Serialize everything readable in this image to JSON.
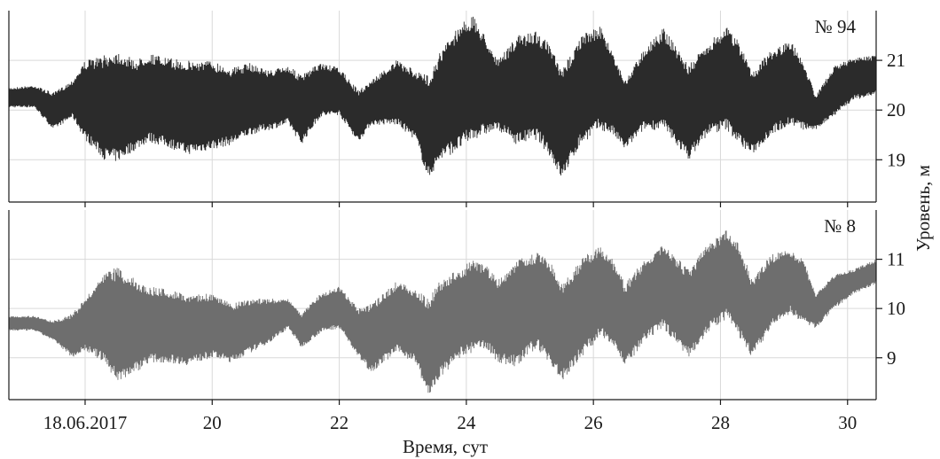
{
  "chart_data": {
    "type": "line",
    "xlabel": "Время, сут",
    "ylabel": "Уровень, м",
    "xlim": [
      16.8,
      30.45
    ],
    "x_ticks": [
      18,
      20,
      22,
      24,
      26,
      28,
      30
    ],
    "x_tick_labels": [
      "18.06.2017",
      "20",
      "22",
      "24",
      "26",
      "28",
      "30"
    ],
    "grid": true,
    "panels": [
      {
        "name": "№ 94",
        "color": "#2b2b2b",
        "ylim": [
          18.15,
          22.0
        ],
        "y_ticks": [
          19,
          20,
          21
        ],
        "envelope": {
          "x": [
            16.8,
            17.2,
            17.5,
            17.8,
            18.0,
            18.3,
            18.5,
            18.8,
            19.0,
            19.3,
            19.6,
            20.0,
            20.3,
            20.6,
            20.9,
            21.2,
            21.4,
            21.7,
            22.0,
            22.3,
            22.5,
            22.9,
            23.2,
            23.4,
            23.6,
            23.9,
            24.1,
            24.3,
            24.5,
            24.8,
            25.1,
            25.3,
            25.5,
            25.8,
            26.1,
            26.3,
            26.5,
            26.8,
            27.1,
            27.3,
            27.5,
            27.8,
            28.1,
            28.3,
            28.5,
            28.8,
            29.1,
            29.3,
            29.5,
            29.8,
            30.1,
            30.45
          ],
          "upper": [
            20.45,
            20.5,
            20.35,
            20.6,
            21.0,
            21.1,
            21.2,
            21.0,
            21.15,
            21.05,
            21.0,
            21.0,
            20.85,
            20.95,
            20.8,
            20.9,
            20.7,
            20.95,
            20.85,
            20.4,
            20.6,
            21.0,
            20.8,
            20.7,
            21.2,
            21.75,
            21.9,
            21.5,
            21.0,
            21.5,
            21.6,
            21.35,
            20.8,
            21.5,
            21.7,
            21.2,
            20.6,
            21.25,
            21.65,
            21.3,
            20.9,
            21.35,
            21.7,
            21.35,
            20.8,
            21.2,
            21.4,
            21.0,
            20.3,
            20.9,
            21.05,
            21.1
          ],
          "lower": [
            20.05,
            20.05,
            19.6,
            19.85,
            19.4,
            19.0,
            18.95,
            19.2,
            19.35,
            19.25,
            19.1,
            19.2,
            19.3,
            19.5,
            19.6,
            19.7,
            19.3,
            19.85,
            19.9,
            19.35,
            19.7,
            19.7,
            19.4,
            18.6,
            19.0,
            19.2,
            19.4,
            19.5,
            19.6,
            19.3,
            19.4,
            19.1,
            18.6,
            19.3,
            19.6,
            19.5,
            19.2,
            19.6,
            19.6,
            19.3,
            19.0,
            19.5,
            19.6,
            19.3,
            19.1,
            19.5,
            19.7,
            19.6,
            19.6,
            19.9,
            20.2,
            20.3
          ]
        }
      },
      {
        "name": "№ 8",
        "color": "#6e6e6e",
        "ylim": [
          8.15,
          12.0
        ],
        "y_ticks": [
          9,
          10,
          11
        ],
        "envelope": {
          "x": [
            16.8,
            17.2,
            17.5,
            17.8,
            18.0,
            18.3,
            18.5,
            18.8,
            19.0,
            19.3,
            19.6,
            20.0,
            20.3,
            20.6,
            20.9,
            21.2,
            21.4,
            21.7,
            22.0,
            22.3,
            22.5,
            22.9,
            23.2,
            23.4,
            23.6,
            23.9,
            24.1,
            24.3,
            24.5,
            24.8,
            25.1,
            25.3,
            25.5,
            25.8,
            26.1,
            26.3,
            26.5,
            26.8,
            27.1,
            27.3,
            27.5,
            27.8,
            28.1,
            28.3,
            28.5,
            28.8,
            29.1,
            29.3,
            29.5,
            29.8,
            30.1,
            30.45
          ],
          "upper": [
            9.85,
            9.85,
            9.75,
            9.9,
            10.2,
            10.7,
            10.85,
            10.6,
            10.45,
            10.4,
            10.3,
            10.3,
            10.1,
            10.2,
            10.2,
            10.2,
            9.9,
            10.3,
            10.45,
            10.0,
            10.1,
            10.55,
            10.4,
            10.2,
            10.6,
            10.8,
            11.0,
            10.9,
            10.6,
            11.0,
            11.15,
            11.0,
            10.5,
            11.0,
            11.3,
            11.0,
            10.5,
            11.0,
            11.3,
            11.05,
            10.8,
            11.3,
            11.6,
            11.3,
            10.6,
            11.1,
            11.2,
            11.0,
            10.3,
            10.7,
            10.8,
            11.0
          ],
          "lower": [
            9.55,
            9.55,
            9.35,
            9.0,
            9.15,
            8.9,
            8.5,
            8.7,
            8.9,
            8.9,
            8.85,
            9.0,
            8.9,
            9.1,
            9.3,
            9.6,
            9.2,
            9.5,
            9.6,
            9.0,
            8.7,
            9.1,
            8.9,
            8.2,
            8.6,
            9.0,
            9.1,
            9.2,
            8.9,
            8.8,
            9.2,
            8.9,
            8.5,
            9.0,
            9.4,
            9.3,
            8.8,
            9.3,
            9.6,
            9.3,
            9.0,
            9.5,
            9.8,
            9.4,
            9.0,
            9.6,
            9.9,
            9.7,
            9.6,
            10.0,
            10.3,
            10.5
          ]
        }
      }
    ]
  }
}
